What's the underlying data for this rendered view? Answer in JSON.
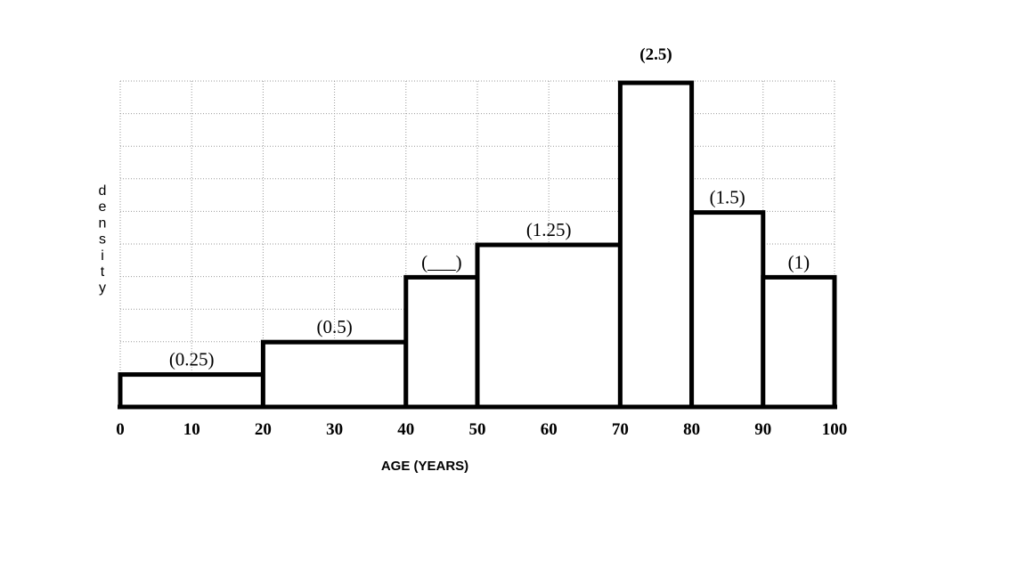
{
  "chart_data": {
    "type": "bar",
    "title": "",
    "xlabel": "AGE  (YEARS)",
    "ylabel": "density",
    "grid": true,
    "x_ticks": [
      0,
      10,
      20,
      30,
      40,
      50,
      60,
      70,
      80,
      90,
      100
    ],
    "xlim": [
      0,
      100
    ],
    "ylim": [
      0,
      2.5
    ],
    "bins": [
      {
        "x_start": 0,
        "x_end": 20,
        "value": 0.25,
        "label": "(0.25)"
      },
      {
        "x_start": 20,
        "x_end": 40,
        "value": 0.5,
        "label": "(0.5)"
      },
      {
        "x_start": 40,
        "x_end": 50,
        "value": 1.0,
        "label": "(___)"
      },
      {
        "x_start": 50,
        "x_end": 70,
        "value": 1.25,
        "label": "(1.25)"
      },
      {
        "x_start": 70,
        "x_end": 80,
        "value": 2.5,
        "label": "(2.5)"
      },
      {
        "x_start": 80,
        "x_end": 90,
        "value": 1.5,
        "label": "(1.5)"
      },
      {
        "x_start": 90,
        "x_end": 100,
        "value": 1.0,
        "label": "(1)"
      }
    ],
    "colors": {
      "bar_fill": "#ffffff",
      "bar_stroke": "#000000",
      "grid": "#9a9a9a"
    }
  }
}
